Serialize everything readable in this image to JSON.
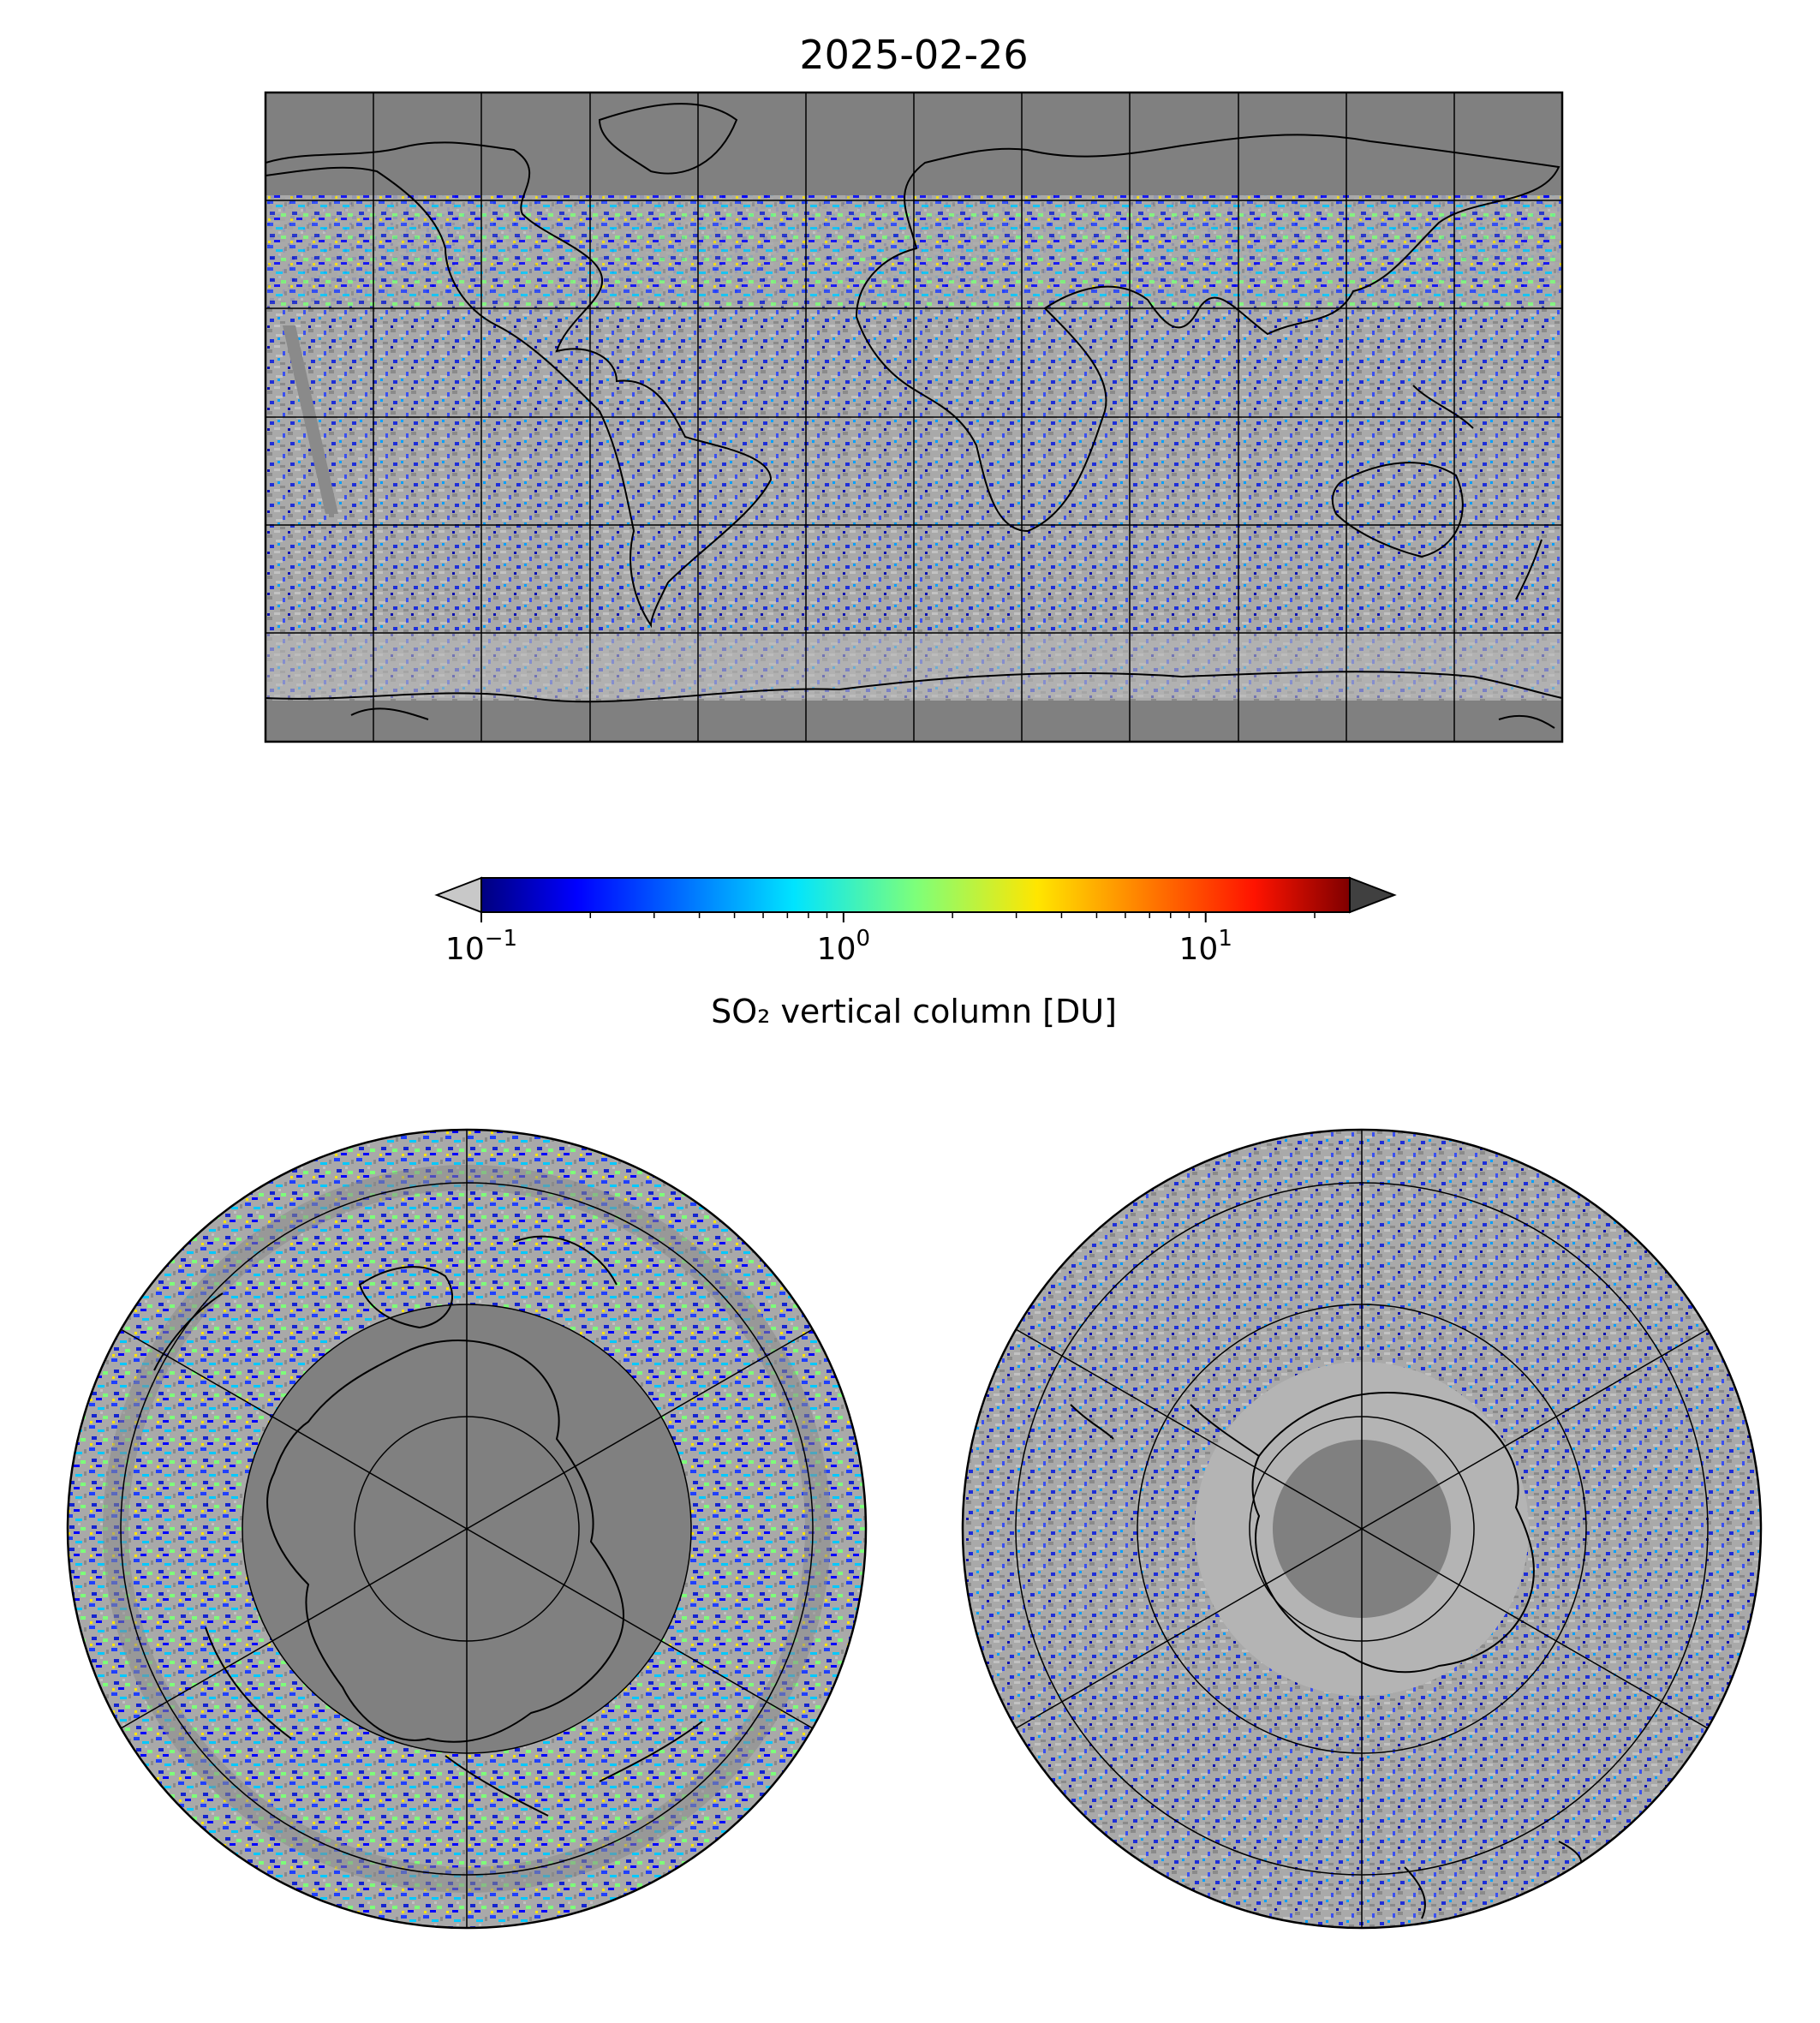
{
  "figure": {
    "title": "2025-02-26"
  },
  "colorbar": {
    "label": "SO₂ vertical column [DU]",
    "scale": "log",
    "range": [
      0.1,
      25
    ],
    "extend": "both",
    "under_color": "#c8c8c8",
    "over_color": "#404040",
    "colormap": "jet",
    "ticks": [
      {
        "value": 0.1,
        "base": "10",
        "exp": "−1"
      },
      {
        "value": 1,
        "base": "10",
        "exp": "0"
      },
      {
        "value": 10,
        "base": "10",
        "exp": "1"
      }
    ]
  },
  "maps": {
    "background_color": "#808080",
    "low_value_color": "#b4b4b4",
    "global_map": {
      "projection": "plate-carree",
      "gridlines": true,
      "lon_grid_deg": 30,
      "lat_grid_deg": 30,
      "coastlines": true
    },
    "north_polar_map": {
      "projection": "north-polar-stereographic",
      "gridlines": true,
      "coastlines": true
    },
    "south_polar_map": {
      "projection": "south-polar-stereographic",
      "gridlines": true,
      "coastlines": true
    }
  }
}
